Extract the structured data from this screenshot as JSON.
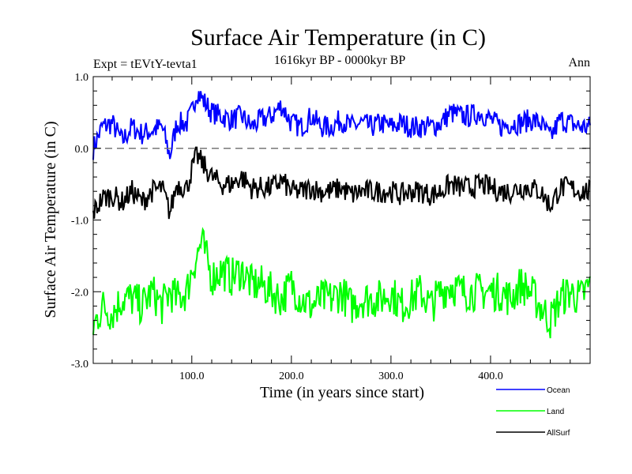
{
  "page": {
    "title": "Surface Air Temperature (in C)",
    "experiment": "Expt = tEVtY-tevta1",
    "period": "1616kyr BP - 0000kyr BP",
    "season": "Ann"
  },
  "chart_data": {
    "type": "line",
    "title": "Surface Air Temperature (in C)",
    "xlabel": "Time (in years since start)",
    "ylabel": "Surface Air Temperature (in C)",
    "xlim": [
      1,
      500
    ],
    "ylim": [
      -3.0,
      1.0
    ],
    "xticks": [
      100,
      200,
      300,
      400
    ],
    "xtick_labels": [
      "100.0",
      "200.0",
      "300.0",
      "400.0"
    ],
    "yticks": [
      1.0,
      0.0,
      -1.0,
      -2.0,
      -3.0
    ],
    "ytick_labels": [
      "1.0",
      "0.0",
      "-1.0",
      "-2.0",
      "-3.0"
    ],
    "reference_line": {
      "y": 0.0,
      "style": "dashed"
    },
    "series": [
      {
        "name": "Ocean",
        "color": "#0000ff",
        "x": [
          1,
          10,
          20,
          30,
          40,
          50,
          60,
          70,
          78,
          85,
          95,
          100,
          105,
          110,
          120,
          130,
          140,
          150,
          160,
          170,
          180,
          190,
          200,
          210,
          220,
          230,
          240,
          250,
          260,
          270,
          280,
          290,
          300,
          310,
          320,
          330,
          340,
          350,
          360,
          370,
          380,
          390,
          400,
          410,
          420,
          430,
          440,
          450,
          460,
          470,
          480,
          490,
          500
        ],
        "values": [
          0.0,
          0.3,
          0.35,
          0.1,
          0.3,
          0.2,
          0.25,
          0.3,
          -0.1,
          0.35,
          0.35,
          0.5,
          0.8,
          0.7,
          0.5,
          0.45,
          0.4,
          0.45,
          0.3,
          0.4,
          0.45,
          0.6,
          0.35,
          0.3,
          0.45,
          0.3,
          0.3,
          0.4,
          0.3,
          0.35,
          0.3,
          0.35,
          0.3,
          0.35,
          0.3,
          0.3,
          0.3,
          0.35,
          0.5,
          0.45,
          0.45,
          0.5,
          0.4,
          0.3,
          0.35,
          0.35,
          0.4,
          0.35,
          0.15,
          0.4,
          0.35,
          0.3,
          0.3
        ]
      },
      {
        "name": "Land",
        "color": "#00ff00",
        "x": [
          1,
          10,
          20,
          30,
          40,
          50,
          60,
          70,
          78,
          85,
          95,
          100,
          105,
          110,
          120,
          130,
          140,
          150,
          160,
          170,
          180,
          190,
          200,
          210,
          220,
          230,
          240,
          250,
          260,
          270,
          280,
          290,
          300,
          310,
          320,
          330,
          340,
          350,
          360,
          370,
          380,
          390,
          400,
          410,
          420,
          430,
          440,
          450,
          460,
          470,
          480,
          490,
          500
        ],
        "values": [
          -2.5,
          -2.2,
          -2.3,
          -2.1,
          -2.1,
          -2.2,
          -2.0,
          -2.2,
          -2.0,
          -2.1,
          -2.0,
          -1.7,
          -1.5,
          -1.3,
          -1.8,
          -1.7,
          -1.8,
          -1.7,
          -1.9,
          -1.9,
          -2.0,
          -2.1,
          -1.9,
          -2.1,
          -2.2,
          -2.1,
          -2.1,
          -2.0,
          -2.2,
          -2.1,
          -2.1,
          -2.1,
          -2.0,
          -2.2,
          -2.1,
          -2.0,
          -2.2,
          -2.0,
          -1.9,
          -2.0,
          -2.0,
          -2.0,
          -2.0,
          -2.0,
          -2.1,
          -1.9,
          -2.0,
          -2.2,
          -2.4,
          -2.1,
          -2.0,
          -2.1,
          -1.9
        ]
      },
      {
        "name": "AllSurf",
        "color": "#000000",
        "x": [
          1,
          10,
          20,
          30,
          40,
          50,
          60,
          70,
          78,
          85,
          95,
          100,
          105,
          110,
          120,
          130,
          140,
          150,
          160,
          170,
          180,
          190,
          200,
          210,
          220,
          230,
          240,
          250,
          260,
          270,
          280,
          290,
          300,
          310,
          320,
          330,
          340,
          350,
          360,
          370,
          380,
          390,
          400,
          410,
          420,
          430,
          440,
          450,
          460,
          470,
          480,
          490,
          500
        ],
        "values": [
          -0.9,
          -0.7,
          -0.65,
          -0.75,
          -0.6,
          -0.75,
          -0.6,
          -0.55,
          -0.9,
          -0.5,
          -0.55,
          -0.3,
          -0.1,
          -0.2,
          -0.4,
          -0.5,
          -0.5,
          -0.4,
          -0.55,
          -0.55,
          -0.55,
          -0.45,
          -0.6,
          -0.6,
          -0.55,
          -0.6,
          -0.6,
          -0.55,
          -0.65,
          -0.6,
          -0.6,
          -0.6,
          -0.6,
          -0.65,
          -0.6,
          -0.6,
          -0.65,
          -0.6,
          -0.5,
          -0.55,
          -0.55,
          -0.5,
          -0.55,
          -0.6,
          -0.6,
          -0.55,
          -0.55,
          -0.6,
          -0.8,
          -0.55,
          -0.55,
          -0.6,
          -0.6
        ]
      }
    ]
  }
}
